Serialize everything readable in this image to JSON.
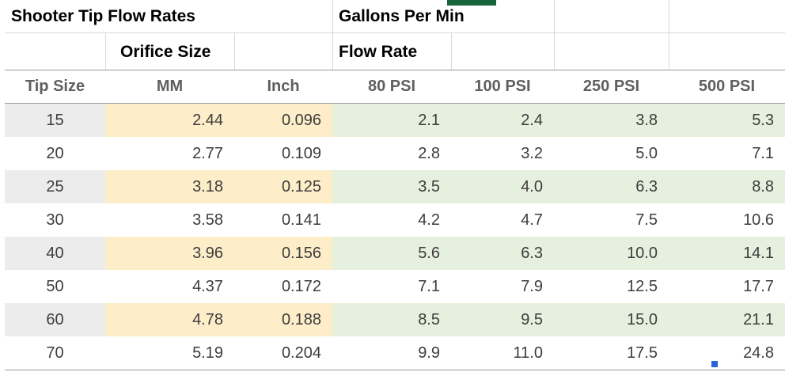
{
  "titles": {
    "main": "Shooter Tip Flow Rates",
    "units": "Gallons Per Min",
    "orifice": "Orifice Size",
    "flow": "Flow Rate"
  },
  "table": {
    "headers": [
      "Tip Size",
      "MM",
      "Inch",
      "80 PSI",
      "100 PSI",
      "250 PSI",
      "500 PSI"
    ],
    "rows": [
      [
        "15",
        "2.44",
        "0.096",
        "2.1",
        "2.4",
        "3.8",
        "5.3"
      ],
      [
        "20",
        "2.77",
        "0.109",
        "2.8",
        "3.2",
        "5.0",
        "7.1"
      ],
      [
        "25",
        "3.18",
        "0.125",
        "3.5",
        "4.0",
        "6.3",
        "8.8"
      ],
      [
        "30",
        "3.58",
        "0.141",
        "4.2",
        "4.7",
        "7.5",
        "10.6"
      ],
      [
        "40",
        "3.96",
        "0.156",
        "5.6",
        "6.3",
        "10.0",
        "14.1"
      ],
      [
        "50",
        "4.37",
        "0.172",
        "7.1",
        "7.9",
        "12.5",
        "17.7"
      ],
      [
        "60",
        "4.78",
        "0.188",
        "8.5",
        "9.5",
        "15.0",
        "21.1"
      ],
      [
        "70",
        "5.19",
        "0.204",
        "9.9",
        "11.0",
        "17.5",
        "24.8"
      ]
    ]
  },
  "colors": {
    "stripe_gray": "#ececec",
    "stripe_orange": "#fdedc8",
    "stripe_green": "#e6f0de",
    "header_text": "#5f5f5f",
    "data_text": "#3d3d3d",
    "border_gray": "#9a9a9a",
    "gridline": "#d9d9d9",
    "selection_green": "#17633c",
    "handle_blue": "#2a63d4"
  }
}
